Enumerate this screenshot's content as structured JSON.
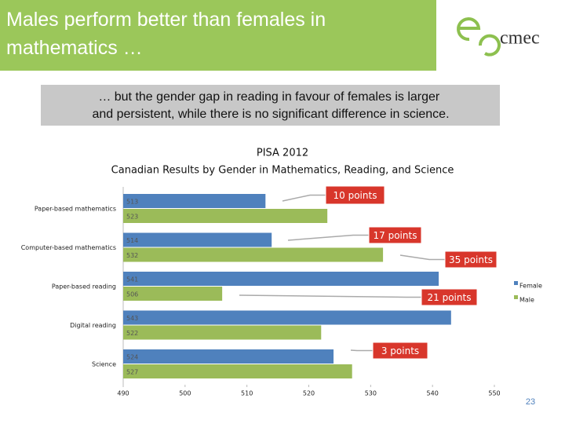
{
  "slide": {
    "title": "Males perform better than females in mathematics …",
    "subtitle": "… but the gender gap in reading in favour of females is larger and persistent, while there is no significant difference in science.",
    "logo_text": "cmec",
    "page_number": "23"
  },
  "chart_data": {
    "type": "hbar",
    "title": "PISA 2012",
    "subtitle": "Canadian Results by Gender in Mathematics, Reading, and Science",
    "categories": [
      "Paper-based mathematics",
      "Computer-based mathematics",
      "Paper-based reading",
      "Digital reading",
      "Science"
    ],
    "series": [
      {
        "name": "Female",
        "color": "#4f81bd",
        "values": [
          513,
          514,
          541,
          543,
          524
        ]
      },
      {
        "name": "Male",
        "color": "#9bbb59",
        "values": [
          523,
          532,
          506,
          522,
          527
        ]
      }
    ],
    "xlim": [
      490,
      550
    ],
    "xticks": [
      490,
      500,
      510,
      520,
      530,
      540,
      550
    ],
    "grid": false,
    "legend": "right",
    "annotations": [
      {
        "text": "10 points"
      },
      {
        "text": "17 points"
      },
      {
        "text": "35 points"
      },
      {
        "text": "21 points"
      },
      {
        "text": "3 points"
      }
    ]
  }
}
